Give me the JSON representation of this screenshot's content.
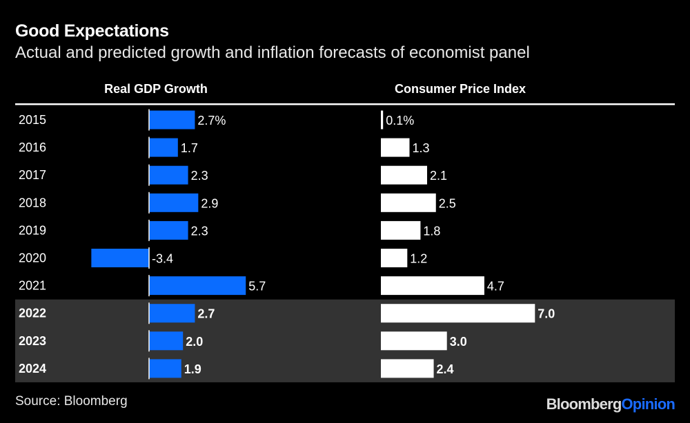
{
  "chart_data": {
    "type": "bar",
    "title": "Good Expectations",
    "subtitle": "Actual and predicted growth and inflation forecasts of economist panel",
    "categories": [
      "2015",
      "2016",
      "2017",
      "2018",
      "2019",
      "2020",
      "2021",
      "2022",
      "2023",
      "2024"
    ],
    "highlighted_categories": [
      "2022",
      "2023",
      "2024"
    ],
    "series": [
      {
        "name": "Real GDP Growth",
        "color": "#0a6cff",
        "values": [
          2.7,
          1.7,
          2.3,
          2.9,
          2.3,
          -3.4,
          5.7,
          2.7,
          2.0,
          1.9
        ],
        "labels": [
          "2.7%",
          "1.7",
          "2.3",
          "2.9",
          "2.3",
          "-3.4",
          "5.7",
          "2.7",
          "2.0",
          "1.9"
        ]
      },
      {
        "name": "Consumer Price Index",
        "color": "#ffffff",
        "values": [
          0.1,
          1.3,
          2.1,
          2.5,
          1.8,
          1.2,
          4.7,
          7.0,
          3.0,
          2.4
        ],
        "labels": [
          "0.1%",
          "1.3",
          "2.1",
          "2.5",
          "1.8",
          "1.2",
          "4.7",
          "7.0",
          "3.0",
          "2.4"
        ]
      }
    ],
    "highlight_color": "#333333",
    "grid": false,
    "legend": "none"
  },
  "source": "Source: Bloomberg",
  "logo": {
    "part1": "Bloomberg",
    "part2": "Opinion"
  }
}
